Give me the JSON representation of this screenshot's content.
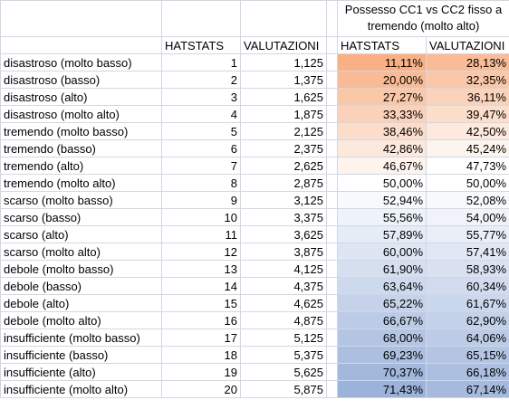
{
  "header": {
    "title": "Possesso CC1 vs CC2 fisso a tremendo (molto alto)",
    "columns": [
      "HATSTATS",
      "VALUTAZIONI",
      "HATSTATS",
      "VALUTAZIONI"
    ]
  },
  "table": {
    "rows": [
      [
        "disastroso (molto basso)",
        "1",
        "1,125",
        "11,11%",
        "28,13%"
      ],
      [
        "disastroso (basso)",
        "2",
        "1,375",
        "20,00%",
        "32,35%"
      ],
      [
        "disastroso (alto)",
        "3",
        "1,625",
        "27,27%",
        "36,11%"
      ],
      [
        "disastroso (molto alto)",
        "4",
        "1,875",
        "33,33%",
        "39,47%"
      ],
      [
        "tremendo (molto basso)",
        "5",
        "2,125",
        "38,46%",
        "42,50%"
      ],
      [
        "tremendo (basso)",
        "6",
        "2,375",
        "42,86%",
        "45,24%"
      ],
      [
        "tremendo (alto)",
        "7",
        "2,625",
        "46,67%",
        "47,73%"
      ],
      [
        "tremendo (molto alto)",
        "8",
        "2,875",
        "50,00%",
        "50,00%"
      ],
      [
        "scarso (molto basso)",
        "9",
        "3,125",
        "52,94%",
        "52,08%"
      ],
      [
        "scarso (basso)",
        "10",
        "3,375",
        "55,56%",
        "54,00%"
      ],
      [
        "scarso (alto)",
        "11",
        "3,625",
        "57,89%",
        "55,77%"
      ],
      [
        "scarso (molto alto)",
        "12",
        "3,875",
        "60,00%",
        "57,41%"
      ],
      [
        "debole (molto basso)",
        "13",
        "4,125",
        "61,90%",
        "58,93%"
      ],
      [
        "debole (basso)",
        "14",
        "4,375",
        "63,64%",
        "60,34%"
      ],
      [
        "debole (alto)",
        "15",
        "4,625",
        "65,22%",
        "61,67%"
      ],
      [
        "debole (molto alto)",
        "16",
        "4,875",
        "66,67%",
        "62,90%"
      ],
      [
        "insufficiente (molto basso)",
        "17",
        "5,125",
        "68,00%",
        "64,06%"
      ],
      [
        "insufficiente (basso)",
        "18",
        "5,375",
        "69,23%",
        "65,15%"
      ],
      [
        "insufficiente (alto)",
        "19",
        "5,625",
        "70,37%",
        "66,18%"
      ],
      [
        "insufficiente (molto alto)",
        "20",
        "5,875",
        "71,43%",
        "67,14%"
      ]
    ]
  }
}
